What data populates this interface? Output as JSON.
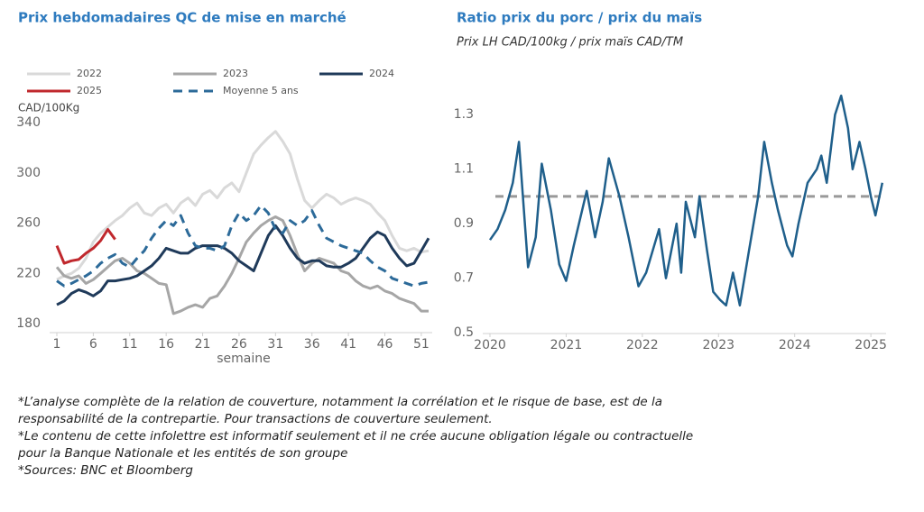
{
  "chart_data": [
    {
      "type": "line",
      "title": "Prix hebdomadaires QC de mise en marché",
      "y_label": "CAD/100Kg",
      "x_label": "semaine",
      "legend": "top",
      "x": [
        1,
        2,
        3,
        4,
        5,
        6,
        7,
        8,
        9,
        10,
        11,
        12,
        13,
        14,
        15,
        16,
        17,
        18,
        19,
        20,
        21,
        22,
        23,
        24,
        25,
        26,
        27,
        28,
        29,
        30,
        31,
        32,
        33,
        34,
        35,
        36,
        37,
        38,
        39,
        40,
        41,
        42,
        43,
        44,
        45,
        46,
        47,
        48,
        49,
        50,
        51,
        52
      ],
      "xlim": [
        1,
        52.5
      ],
      "xticks": [
        1,
        6,
        11,
        16,
        21,
        26,
        31,
        36,
        41,
        46,
        51
      ],
      "ylim": [
        180,
        340
      ],
      "yticks": [
        180,
        220,
        260,
        300,
        340
      ],
      "series": [
        {
          "name": "2022",
          "color": "#d9d9d9",
          "values": [
            215,
            218,
            220,
            224,
            232,
            245,
            252,
            257,
            262,
            266,
            272,
            276,
            268,
            266,
            272,
            275,
            268,
            276,
            280,
            274,
            283,
            286,
            280,
            288,
            292,
            285,
            300,
            315,
            322,
            328,
            333,
            325,
            315,
            295,
            278,
            272,
            278,
            283,
            280,
            275,
            278,
            280,
            278,
            275,
            268,
            262,
            250,
            240,
            238,
            240,
            237,
            238
          ]
        },
        {
          "name": "2023",
          "color": "#a6a6a6",
          "values": [
            225,
            218,
            216,
            218,
            212,
            215,
            220,
            225,
            230,
            232,
            228,
            222,
            220,
            216,
            212,
            211,
            188,
            190,
            193,
            195,
            193,
            200,
            202,
            210,
            220,
            232,
            245,
            252,
            258,
            262,
            265,
            262,
            250,
            235,
            222,
            228,
            232,
            230,
            228,
            222,
            220,
            214,
            210,
            208,
            210,
            206,
            204,
            200,
            198,
            196,
            190,
            190
          ]
        },
        {
          "name": "2024",
          "color": "#1f3a5a",
          "values": [
            195,
            198,
            204,
            207,
            205,
            202,
            206,
            214,
            214,
            215,
            216,
            218,
            222,
            226,
            232,
            240,
            238,
            236,
            236,
            240,
            242,
            242,
            242,
            240,
            236,
            230,
            226,
            222,
            236,
            250,
            258,
            250,
            240,
            232,
            228,
            230,
            230,
            226,
            225,
            225,
            228,
            232,
            240,
            248,
            253,
            250,
            240,
            232,
            226,
            228,
            238,
            248
          ]
        },
        {
          "name": "2025",
          "color": "#c0282d",
          "values": [
            242,
            228,
            230,
            231,
            236,
            240,
            246,
            255,
            247,
            null,
            null,
            null,
            null,
            null,
            null,
            null,
            null,
            null,
            null,
            null,
            null,
            null,
            null,
            null,
            null,
            null,
            null,
            null,
            null,
            null,
            null,
            null,
            null,
            null,
            null,
            null,
            null,
            null,
            null,
            null,
            null,
            null,
            null,
            null,
            null,
            null,
            null,
            null,
            null,
            null,
            null,
            null
          ]
        },
        {
          "name": "Moyenne 5 ans",
          "color": "#2c6a99",
          "dashed": true,
          "values": [
            214,
            210,
            212,
            215,
            218,
            222,
            228,
            232,
            235,
            228,
            225,
            232,
            238,
            248,
            256,
            262,
            258,
            266,
            252,
            242,
            240,
            240,
            238,
            242,
            258,
            268,
            262,
            266,
            274,
            268,
            255,
            252,
            262,
            258,
            262,
            270,
            258,
            248,
            245,
            242,
            240,
            238,
            236,
            230,
            225,
            222,
            216,
            214,
            212,
            210,
            212,
            213
          ]
        }
      ]
    },
    {
      "type": "line",
      "title": "Ratio prix du porc / prix du maïs",
      "subtitle": "Prix LH CAD/100kg / prix maïs CAD/TM",
      "x": [
        2020.0,
        2020.1,
        2020.2,
        2020.3,
        2020.38,
        2020.5,
        2020.6,
        2020.68,
        2020.8,
        2020.91,
        2021.0,
        2021.1,
        2021.27,
        2021.38,
        2021.48,
        2021.56,
        2021.7,
        2021.82,
        2021.95,
        2022.05,
        2022.22,
        2022.31,
        2022.45,
        2022.51,
        2022.57,
        2022.69,
        2022.75,
        2022.85,
        2022.93,
        2023.02,
        2023.1,
        2023.19,
        2023.28,
        2023.4,
        2023.52,
        2023.6,
        2023.7,
        2023.78,
        2023.9,
        2023.97,
        2024.05,
        2024.17,
        2024.29,
        2024.35,
        2024.42,
        2024.53,
        2024.61,
        2024.7,
        2024.76,
        2024.85,
        2024.93,
        2025.0,
        2025.06,
        2025.15
      ],
      "xlim": [
        2020,
        2025.2
      ],
      "xticks": [
        2020,
        2021,
        2022,
        2023,
        2024,
        2025
      ],
      "ylim": [
        0.5,
        1.4
      ],
      "yticks": [
        0.5,
        0.7,
        0.9,
        1.1,
        1.3
      ],
      "reference_line": {
        "value": 1.0,
        "color": "#999999"
      },
      "series": [
        {
          "color": "#1f5f8b",
          "values": [
            0.84,
            0.88,
            0.95,
            1.05,
            1.2,
            0.74,
            0.85,
            1.12,
            0.95,
            0.75,
            0.69,
            0.82,
            1.02,
            0.85,
            0.98,
            1.14,
            1.0,
            0.85,
            0.67,
            0.72,
            0.88,
            0.7,
            0.9,
            0.72,
            0.98,
            0.85,
            1.0,
            0.8,
            0.65,
            0.62,
            0.6,
            0.72,
            0.6,
            0.8,
            1.0,
            1.2,
            1.05,
            0.95,
            0.82,
            0.78,
            0.9,
            1.05,
            1.1,
            1.15,
            1.05,
            1.3,
            1.37,
            1.25,
            1.1,
            1.2,
            1.1,
            1.0,
            0.93,
            1.05
          ]
        }
      ]
    }
  ],
  "notes": [
    "*L’analyse complète de la relation de couverture, notamment la corrélation et le risque de base, est de la",
    "responsabilité de la contrepartie. Pour transactions de couverture seulement.",
    "*Le contenu de cette infolettre est informatif seulement et il ne crée aucune obligation légale ou contractuelle",
    "pour la Banque Nationale et les entités de son groupe",
    "*Sources: BNC et Bloomberg"
  ]
}
